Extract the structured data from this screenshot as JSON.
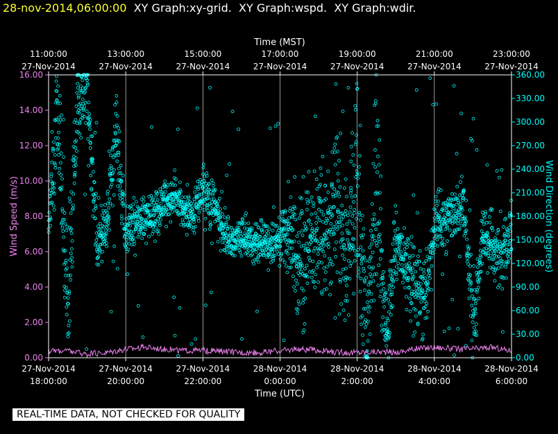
{
  "header": {
    "timestamp": "28-nov-2014,06:00:00",
    "graphs": [
      "XY Graph:xy-grid.",
      "XY Graph:wspd.",
      "XY Graph:wdir."
    ]
  },
  "notice": "REAL-TIME DATA, NOT CHECKED FOR QUALITY",
  "colors": {
    "wind_speed": "#ee82ee",
    "wind_direction": "#00ffff",
    "axis": "#ffffff",
    "timestamp": "#ffff33"
  },
  "chart_data": {
    "type": "scatter",
    "top_axis": {
      "label": "Time (MST)",
      "ticks": [
        {
          "time": "11:00:00",
          "date": "27-Nov-2014"
        },
        {
          "time": "13:00:00",
          "date": "27-Nov-2014"
        },
        {
          "time": "15:00:00",
          "date": "27-Nov-2014"
        },
        {
          "time": "17:00:00",
          "date": "27-Nov-2014"
        },
        {
          "time": "19:00:00",
          "date": "27-Nov-2014"
        },
        {
          "time": "21:00:00",
          "date": "27-Nov-2014"
        },
        {
          "time": "23:00:00",
          "date": "27-Nov-2014"
        }
      ]
    },
    "bottom_axis": {
      "label": "Time (UTC)",
      "ticks": [
        {
          "date": "27-Nov-2014",
          "time": "18:00:00"
        },
        {
          "date": "27-Nov-2014",
          "time": "20:00:00"
        },
        {
          "date": "27-Nov-2014",
          "time": "22:00:00"
        },
        {
          "date": "28-Nov-2014",
          "time": "0:00:00"
        },
        {
          "date": "28-Nov-2014",
          "time": "2:00:00"
        },
        {
          "date": "28-Nov-2014",
          "time": "4:00:00"
        },
        {
          "date": "28-Nov-2014",
          "time": "6:00:00"
        }
      ],
      "range_hours": [
        0,
        12
      ]
    },
    "left_axis": {
      "label": "Wind Speed (m/s)",
      "ylim": [
        0,
        16
      ],
      "ticks": [
        "0.00",
        "2.00",
        "4.00",
        "6.00",
        "8.00",
        "10.00",
        "12.00",
        "14.00",
        "16.00"
      ]
    },
    "right_axis": {
      "label": "Wind Direction (degrees)",
      "ylim": [
        0,
        360
      ],
      "ticks": [
        "0.00",
        "30.00",
        "60.00",
        "90.00",
        "120.00",
        "150.00",
        "180.00",
        "210.00",
        "240.00",
        "270.00",
        "300.00",
        "330.00",
        "360.00"
      ]
    },
    "grid": "vertical lines at each 2-hour tick",
    "series": [
      {
        "name": "wind speed",
        "axis": "left",
        "style": "line",
        "x_hours": [
          0,
          0.5,
          1,
          1.5,
          2,
          2.5,
          3,
          3.5,
          4,
          4.5,
          5,
          5.5,
          6,
          6.5,
          7,
          7.5,
          8,
          8.5,
          9,
          9.5,
          10,
          10.5,
          11,
          11.5,
          12
        ],
        "values": [
          0.4,
          0.4,
          0.2,
          0.3,
          0.5,
          0.6,
          0.5,
          0.4,
          0.4,
          0.35,
          0.3,
          0.3,
          0.4,
          0.5,
          0.4,
          0.3,
          0.3,
          0.35,
          0.3,
          0.5,
          0.6,
          0.5,
          0.5,
          0.6,
          0.4
        ]
      },
      {
        "name": "wind direction",
        "axis": "right",
        "style": "points",
        "x_hours": [
          0,
          0.25,
          0.5,
          0.75,
          1,
          1.25,
          1.5,
          1.75,
          2,
          2.25,
          2.5,
          2.75,
          3,
          3.25,
          3.5,
          3.75,
          4,
          4.25,
          4.5,
          4.75,
          5,
          5.25,
          5.5,
          5.75,
          6,
          6.25,
          6.5,
          6.75,
          7,
          7.25,
          7.5,
          7.75,
          8,
          8.25,
          8.5,
          8.75,
          9,
          9.25,
          9.5,
          9.75,
          10,
          10.25,
          10.5,
          10.75,
          11,
          11.25,
          11.5,
          11.75,
          12
        ],
        "values": [
          180,
          320,
          60,
          330,
          340,
          150,
          170,
          290,
          160,
          170,
          175,
          185,
          195,
          205,
          190,
          180,
          215,
          200,
          165,
          150,
          155,
          150,
          150,
          145,
          150,
          160,
          120,
          155,
          170,
          150,
          190,
          120,
          220,
          30,
          240,
          20,
          150,
          120,
          90,
          80,
          170,
          175,
          185,
          200,
          50,
          150,
          150,
          120,
          160
        ],
        "spread": [
          40,
          60,
          60,
          40,
          40,
          30,
          30,
          40,
          30,
          25,
          25,
          25,
          25,
          20,
          20,
          20,
          25,
          25,
          25,
          20,
          20,
          20,
          20,
          20,
          25,
          40,
          80,
          60,
          60,
          60,
          100,
          60,
          110,
          50,
          120,
          40,
          40,
          40,
          50,
          50,
          30,
          30,
          30,
          25,
          50,
          30,
          30,
          40,
          30
        ]
      }
    ]
  }
}
